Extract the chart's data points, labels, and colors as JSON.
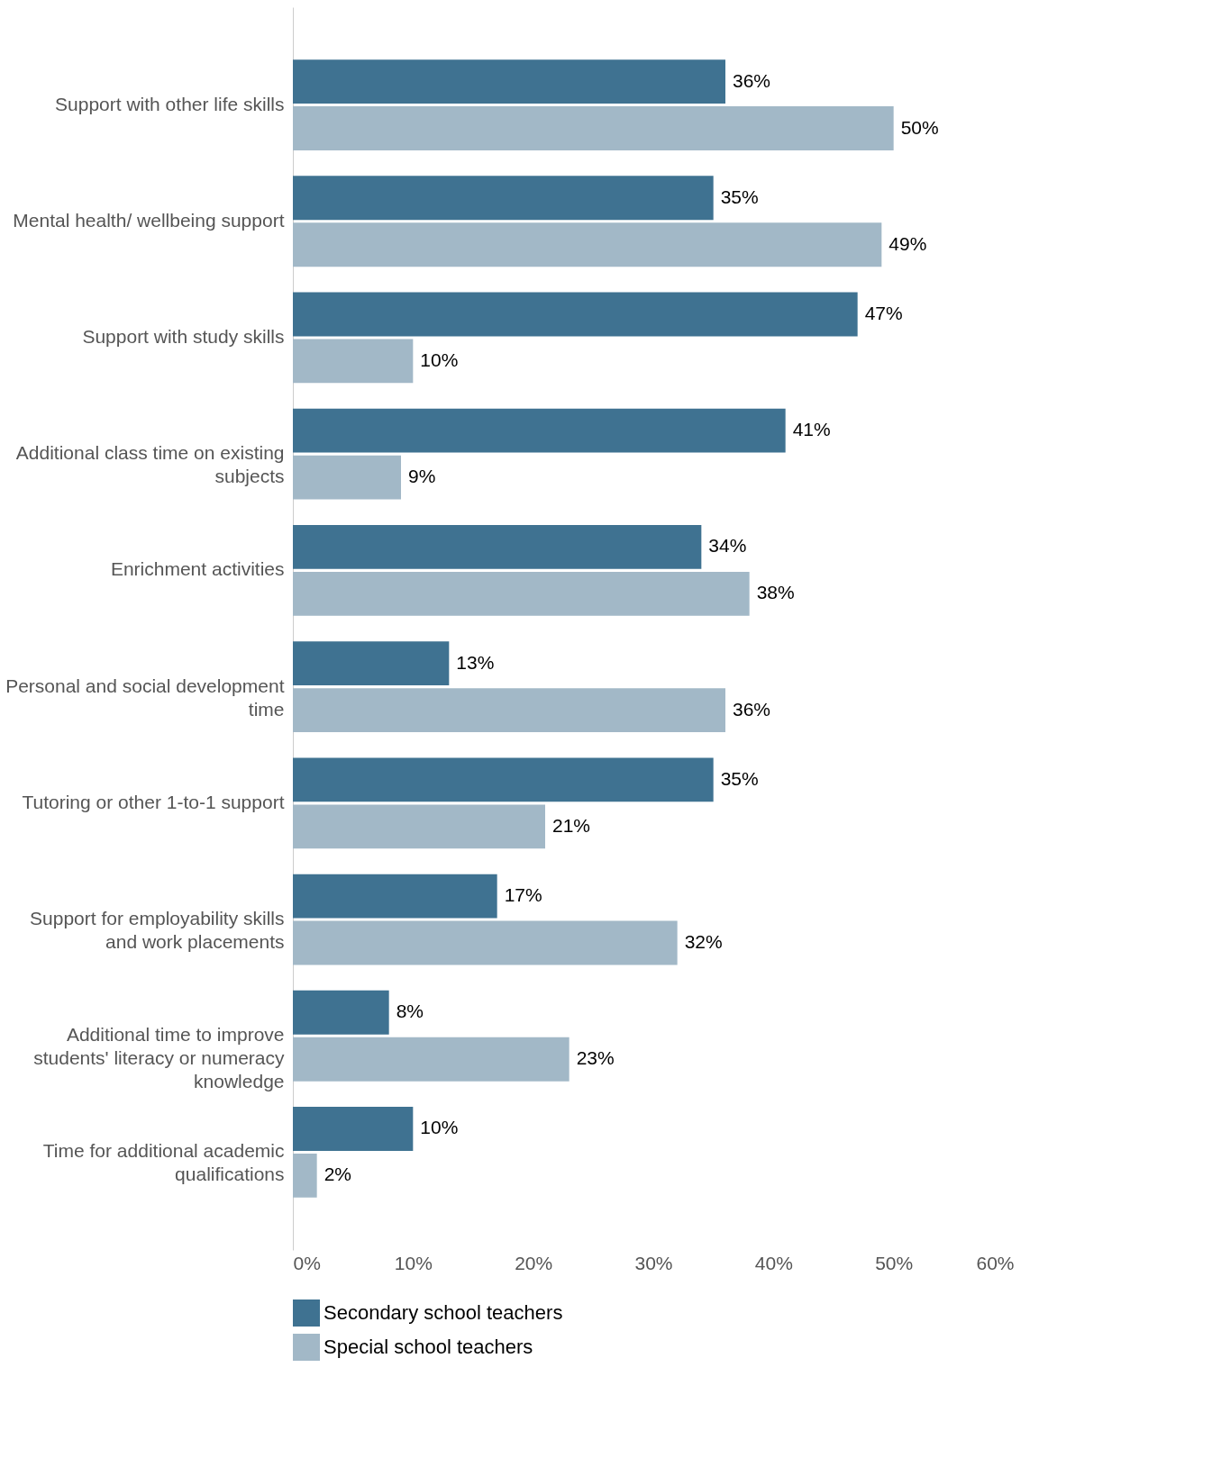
{
  "chart_data": {
    "type": "bar",
    "orientation": "horizontal",
    "categories": [
      "Support with other life skills",
      "Mental health/ wellbeing support",
      "Support with study skills",
      "Additional class time on existing subjects",
      "Enrichment activities",
      "Personal and social development time",
      "Tutoring or other 1-to-1 support",
      "Support for employability skills and work placements",
      "Additional time to improve students' literacy or numeracy knowledge",
      "Time for additional academic qualifications"
    ],
    "series": [
      {
        "name": "Secondary school teachers",
        "color": "#3f7291",
        "values": [
          36,
          35,
          47,
          41,
          34,
          13,
          35,
          17,
          8,
          10
        ],
        "value_labels": [
          "36%",
          "35%",
          "47%",
          "41%",
          "34%",
          "13%",
          "35%",
          "17%",
          "8%",
          "10%"
        ]
      },
      {
        "name": "Special school teachers",
        "color": "#a2b8c7",
        "values": [
          50,
          49,
          10,
          9,
          38,
          36,
          21,
          32,
          23,
          2
        ],
        "value_labels": [
          "50%",
          "49%",
          "10%",
          "9%",
          "38%",
          "36%",
          "21%",
          "32%",
          "23%",
          "2%"
        ]
      }
    ],
    "xlim": [
      0,
      60
    ],
    "xticks": [
      {
        "value": 0,
        "label": "0%"
      },
      {
        "value": 10,
        "label": "10%"
      },
      {
        "value": 20,
        "label": "20%"
      },
      {
        "value": 30,
        "label": "30%"
      },
      {
        "value": 40,
        "label": "40%"
      },
      {
        "value": 50,
        "label": "50%"
      },
      {
        "value": 60,
        "label": "60%"
      }
    ],
    "legend": "bottom"
  }
}
